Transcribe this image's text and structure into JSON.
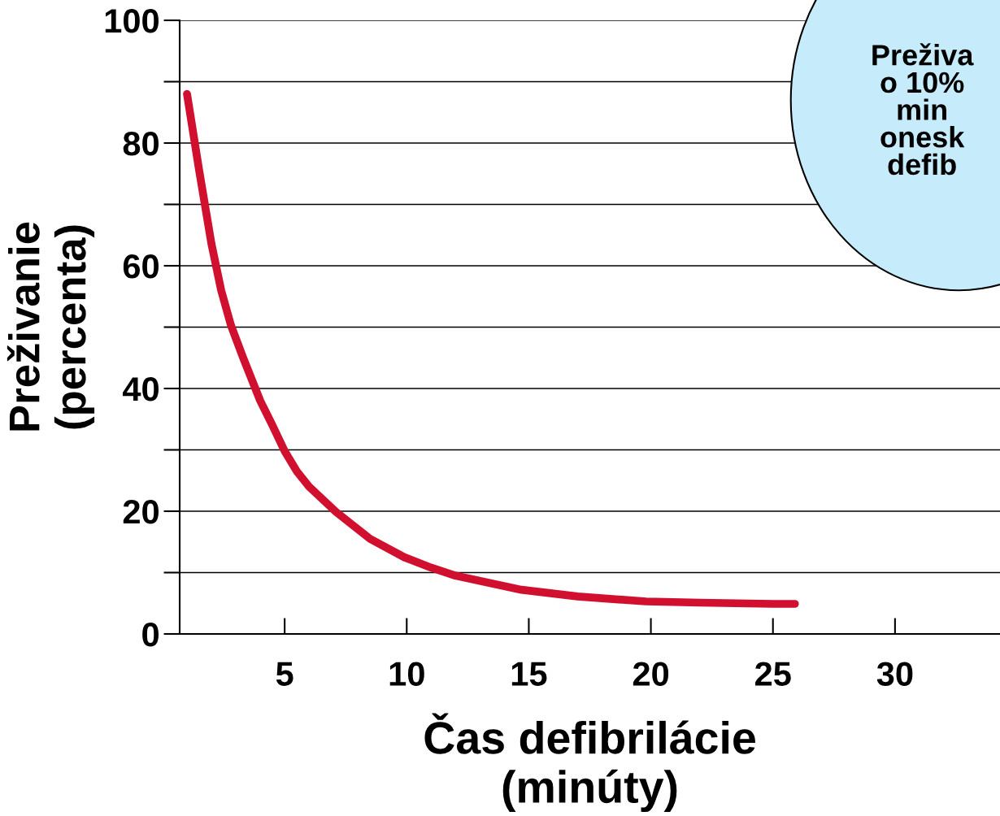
{
  "chart_data": {
    "type": "line",
    "xlabel": "Čas defibrilácie\n(minúty)",
    "ylabel": "Preživanie\n(percenta)",
    "x": [
      1.0,
      1.2,
      1.5,
      2.0,
      2.4,
      2.8,
      3.3,
      4.0,
      4.5,
      5.0,
      5.5,
      6.0,
      7.1,
      8.5,
      9.9,
      11.0,
      12.0,
      14.7,
      17.0,
      19.8,
      22.0,
      25.0,
      25.9
    ],
    "series": [
      {
        "color": "#d0102e",
        "values": [
          88,
          83,
          75.5,
          63.6,
          56,
          50.3,
          45,
          38,
          34,
          29.8,
          26.5,
          24,
          19.9,
          15.5,
          12.5,
          10.8,
          9.5,
          7.2,
          6.1,
          5.3,
          5.1,
          4.9,
          4.9
        ]
      }
    ],
    "xlim": [
      0.7,
      34.3
    ],
    "xticks": [
      5,
      10,
      15,
      20,
      25,
      30
    ],
    "ylim": [
      0,
      100
    ],
    "yticks": [
      0,
      {
        "value": 10,
        "label": null
      },
      20,
      {
        "value": 30,
        "label": null
      },
      40,
      {
        "value": 50,
        "label": null
      },
      60,
      {
        "value": 70,
        "label": null
      },
      80,
      {
        "value": 90,
        "label": null
      },
      100
    ],
    "grid": "y",
    "legend": false,
    "marker": "none",
    "line_style": "solid",
    "annotations": [
      "Preživa\no 10%\nmin\nonesk\ndefib"
    ]
  }
}
